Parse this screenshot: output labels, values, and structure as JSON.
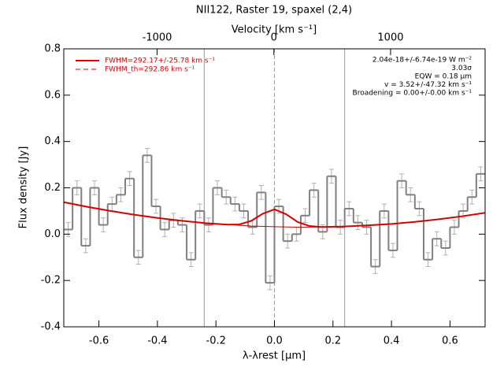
{
  "chart_data": {
    "type": "step",
    "title": "NII122, Raster 19, spaxel (2,4)",
    "xlabel": "λ-λrest [μm]",
    "ylabel": "Flux density [Jy]",
    "x2label": "Velocity [km s⁻¹]",
    "xlim": [
      -0.72,
      0.72
    ],
    "ylim": [
      -0.4,
      0.8
    ],
    "x2lim": [
      -1800,
      1810
    ],
    "xticks": [
      -0.6,
      -0.4,
      -0.2,
      {
        "value": 0,
        "label": "0.0"
      },
      0.2,
      0.4,
      0.6
    ],
    "yticks": [
      -0.4,
      -0.2,
      {
        "value": 0,
        "label": "0.0"
      },
      0.2,
      0.4,
      0.6,
      0.8
    ],
    "x2ticks": [
      -1000,
      0,
      1000
    ],
    "vlines": [
      -0.24,
      0,
      0.24
    ],
    "spectrum": {
      "color": "#808080",
      "error_color": "#b0b0b0",
      "error": 0.03,
      "bins": [
        -0.72,
        -0.69,
        -0.66,
        -0.63,
        -0.6,
        -0.57,
        -0.54,
        -0.51,
        -0.48,
        -0.45,
        -0.42,
        -0.39,
        -0.36,
        -0.33,
        -0.3,
        -0.27,
        -0.24,
        -0.21,
        -0.18,
        -0.15,
        -0.12,
        -0.09,
        -0.06,
        -0.03,
        0,
        0.03,
        0.06,
        0.09,
        0.12,
        0.15,
        0.18,
        0.21,
        0.24,
        0.27,
        0.3,
        0.33,
        0.36,
        0.39,
        0.42,
        0.45,
        0.48,
        0.51,
        0.54,
        0.57,
        0.6,
        0.63,
        0.66,
        0.69,
        0.72
      ],
      "values": [
        0.02,
        0.2,
        -0.05,
        0.2,
        0.04,
        0.13,
        0.17,
        0.24,
        -0.1,
        0.34,
        0.12,
        0.02,
        0.06,
        0.04,
        -0.11,
        0.1,
        0.04,
        0.2,
        0.16,
        0.13,
        0.1,
        0.03,
        0.18,
        -0.21,
        0.12,
        -0.03,
        0.0,
        0.08,
        0.19,
        0.01,
        0.25,
        0.03,
        0.11,
        0.05,
        0.03,
        -0.14,
        0.1,
        -0.07,
        0.23,
        0.17,
        0.11,
        -0.11,
        -0.02,
        -0.06,
        0.03,
        0.1,
        0.16,
        0.26
      ]
    },
    "series": [
      {
        "name": "FWHM=292.17+/-25.78 km s⁻¹",
        "color": "#d40000",
        "style": "solid",
        "x": [
          -0.72,
          -0.64,
          -0.56,
          -0.48,
          -0.4,
          -0.32,
          -0.24,
          -0.16,
          -0.12,
          -0.08,
          -0.04,
          0,
          0.04,
          0.08,
          0.12,
          0.16,
          0.24,
          0.32,
          0.4,
          0.48,
          0.56,
          0.64,
          0.72
        ],
        "values": [
          0.138,
          0.118,
          0.1,
          0.084,
          0.07,
          0.058,
          0.048,
          0.041,
          0.042,
          0.057,
          0.088,
          0.107,
          0.086,
          0.052,
          0.035,
          0.031,
          0.033,
          0.038,
          0.044,
          0.053,
          0.064,
          0.077,
          0.092
        ]
      },
      {
        "name": "FWHM_th=292.86 km s⁻¹",
        "color": "#d40000",
        "style": "dashed",
        "x": [
          -0.72,
          -0.64,
          -0.56,
          -0.48,
          -0.4,
          -0.32,
          -0.24,
          -0.16,
          -0.08,
          0,
          0.08,
          0.16,
          0.24,
          0.32,
          0.4,
          0.48,
          0.56,
          0.64,
          0.72
        ],
        "values": [
          0.138,
          0.118,
          0.1,
          0.084,
          0.07,
          0.058,
          0.048,
          0.041,
          0.035,
          0.032,
          0.03,
          0.031,
          0.033,
          0.038,
          0.044,
          0.053,
          0.064,
          0.077,
          0.092
        ]
      }
    ],
    "annotations": [
      "2.04e-18+/-6.74e-19 W m⁻²",
      "3.03σ",
      "EQW = 0.18 μm",
      "v = 3.52+/-47.32 km s⁻¹",
      "Broadening = 0.00+/-0.00 km s⁻¹"
    ]
  }
}
